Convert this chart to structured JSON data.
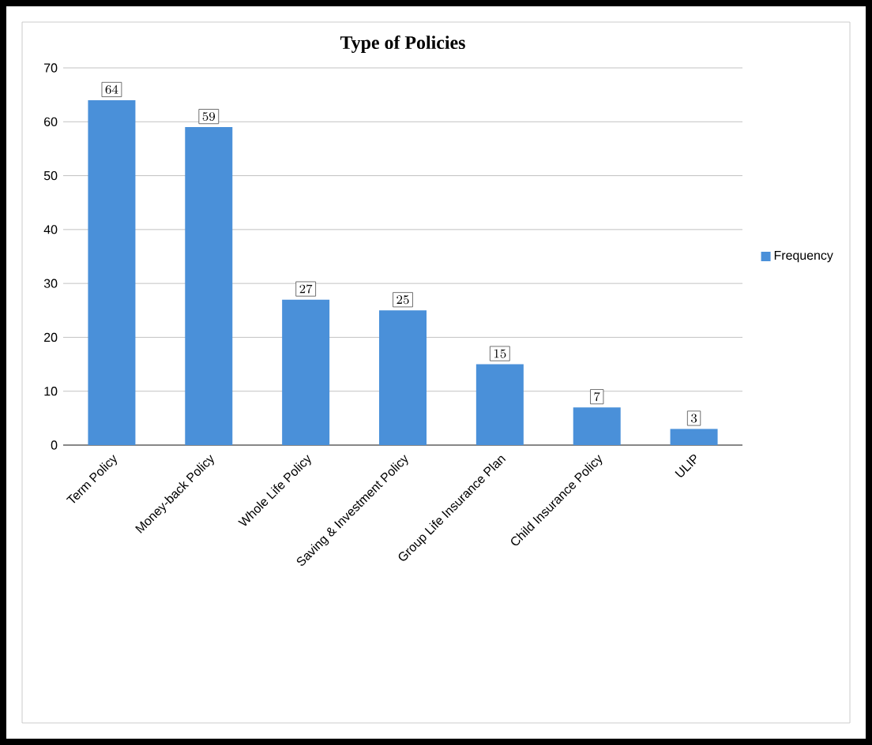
{
  "chart_data": {
    "type": "bar",
    "title": "Type of Policies",
    "categories": [
      "Term Policy",
      "Money-back Policy",
      "Whole Life Policy",
      "Saving & Investment Policy",
      "Group Life Insurance Plan",
      "Child Insurance Policy",
      "ULIP"
    ],
    "series": [
      {
        "name": "Frequency",
        "color": "#4a90d9",
        "values": [
          64,
          59,
          27,
          25,
          15,
          7,
          3
        ]
      }
    ],
    "ylim": [
      0,
      70
    ],
    "yticks": [
      0,
      10,
      20,
      30,
      40,
      50,
      60,
      70
    ],
    "grid": "y",
    "legend": "right",
    "data_labels": true
  }
}
